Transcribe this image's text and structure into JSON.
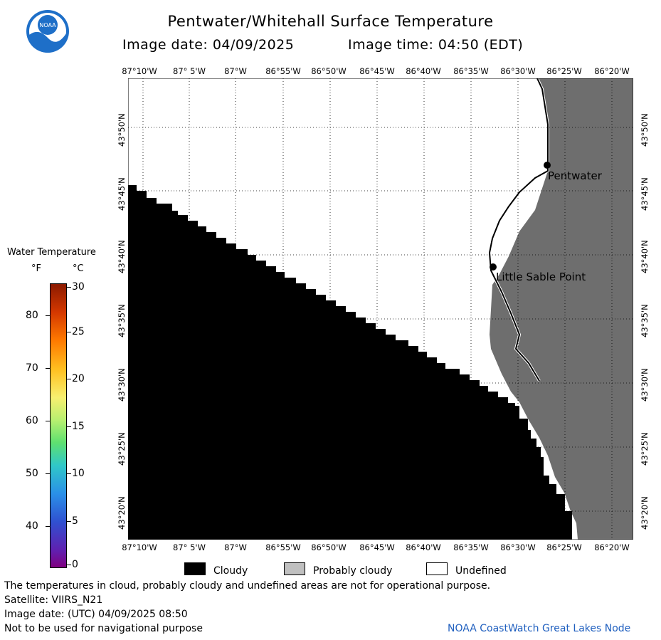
{
  "title": "Pentwater/Whitehall Surface Temperature",
  "image_date_label": "Image date: 04/09/2025",
  "image_time_label": "Image time: 04:50 (EDT)",
  "logo_text": "NOAA",
  "longitude_ticks": [
    "87°10'W",
    "87° 5'W",
    "87°W",
    "86°55'W",
    "86°50'W",
    "86°45'W",
    "86°40'W",
    "86°35'W",
    "86°30'W",
    "86°25'W",
    "86°20'W"
  ],
  "latitude_ticks": [
    "43°50'N",
    "43°45'N",
    "43°40'N",
    "43°35'N",
    "43°30'N",
    "43°25'N",
    "43°20'N"
  ],
  "places": [
    {
      "name": "Pentwater"
    },
    {
      "name": "Little Sable Point"
    }
  ],
  "colorbar": {
    "title": "Water Temperature",
    "unit_f": "°F",
    "unit_c": "°C",
    "f_ticks": [
      "80",
      "70",
      "60",
      "50",
      "40"
    ],
    "c_ticks": [
      "30",
      "25",
      "20",
      "15",
      "10",
      "5",
      "0"
    ]
  },
  "legend": {
    "cloudy": "Cloudy",
    "probably_cloudy": "Probably cloudy",
    "undefined": "Undefined",
    "cloudy_color": "#000000",
    "probably_cloudy_color": "#c0c0c0",
    "undefined_color": "#ffffff",
    "land_color": "#6e6e6e"
  },
  "footer": {
    "note": "The temperatures in cloud, probably cloudy and undefined areas are not for operational purpose.",
    "satellite": "Satellite: VIIRS_N21",
    "utc_date": "Image date: (UTC) 04/09/2025  08:50",
    "nav_warning": "Not to be used for navigational purpose",
    "credit": "NOAA CoastWatch Great Lakes Node"
  }
}
